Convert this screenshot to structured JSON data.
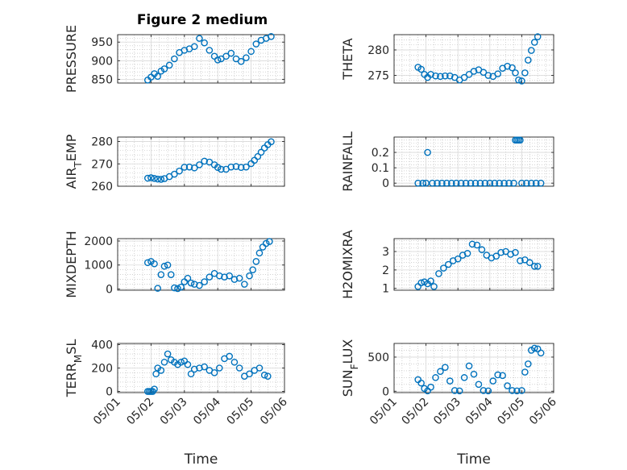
{
  "figure_title": "Figure 2 medium",
  "colors": {
    "marker": "#0072bd",
    "axis": "#262626",
    "grid": "#b8b8b8"
  },
  "chart_data": [
    {
      "type": "scatter",
      "ylabel": "PRESSURE",
      "title": "Figure 2 medium",
      "xlim": [
        0,
        5
      ],
      "ylim": [
        840,
        970
      ],
      "yticks": [
        850,
        900,
        950
      ],
      "xticks": [
        0,
        1,
        2,
        3,
        4,
        5
      ],
      "xticklabels": [
        "05/01",
        "05/02",
        "05/03",
        "05/04",
        "05/05",
        "05/06"
      ],
      "xlabel": "",
      "x": [
        0.9,
        1.0,
        1.1,
        1.2,
        1.3,
        1.4,
        1.55,
        1.7,
        1.85,
        2.0,
        2.15,
        2.3,
        2.45,
        2.6,
        2.75,
        2.9,
        3.0,
        3.1,
        3.25,
        3.4,
        3.55,
        3.7,
        3.85,
        4.0,
        4.15,
        4.3,
        4.45,
        4.6
      ],
      "y": [
        848,
        856,
        865,
        858,
        872,
        878,
        888,
        905,
        922,
        928,
        932,
        938,
        960,
        948,
        928,
        912,
        902,
        905,
        912,
        920,
        905,
        898,
        908,
        925,
        945,
        955,
        960,
        965
      ],
      "grid": true,
      "minor_grid": true
    },
    {
      "type": "scatter",
      "ylabel": "THETA",
      "xlim": [
        0,
        5
      ],
      "ylim": [
        273.5,
        283
      ],
      "yticks": [
        275,
        280
      ],
      "xticks": [
        0,
        1,
        2,
        3,
        4,
        5
      ],
      "xticklabels": [
        "05/01",
        "05/02",
        "05/03",
        "05/04",
        "05/05",
        "05/06"
      ],
      "xlabel": "",
      "x": [
        0.75,
        0.85,
        0.95,
        1.05,
        1.15,
        1.3,
        1.45,
        1.6,
        1.75,
        1.9,
        2.05,
        2.2,
        2.35,
        2.5,
        2.65,
        2.8,
        2.95,
        3.1,
        3.25,
        3.4,
        3.55,
        3.7,
        3.8,
        3.9,
        4.0,
        4.1,
        4.2,
        4.3,
        4.4,
        4.5
      ],
      "y": [
        276.6,
        276.2,
        275.2,
        274.6,
        275.2,
        274.9,
        274.8,
        274.9,
        274.9,
        274.6,
        274.1,
        274.6,
        275.2,
        275.8,
        276.1,
        275.6,
        275.0,
        274.8,
        275.3,
        276.4,
        276.8,
        276.5,
        275.5,
        274.1,
        273.9,
        275.5,
        278.0,
        279.9,
        281.5,
        282.6
      ],
      "grid": true,
      "minor_grid": true
    },
    {
      "type": "scatter",
      "ylabel": "AIR_TEMP",
      "xlim": [
        0,
        5
      ],
      "ylim": [
        260,
        282
      ],
      "yticks": [
        260,
        270,
        280
      ],
      "xticks": [
        0,
        1,
        2,
        3,
        4,
        5
      ],
      "xticklabels": [
        "05/01",
        "05/02",
        "05/03",
        "05/04",
        "05/05",
        "05/06"
      ],
      "xlabel": "",
      "x": [
        0.9,
        1.0,
        1.1,
        1.2,
        1.3,
        1.4,
        1.55,
        1.7,
        1.85,
        2.0,
        2.15,
        2.3,
        2.45,
        2.6,
        2.75,
        2.9,
        3.0,
        3.1,
        3.25,
        3.4,
        3.55,
        3.7,
        3.85,
        4.0,
        4.1,
        4.2,
        4.3,
        4.4,
        4.5,
        4.6
      ],
      "y": [
        263.6,
        263.8,
        263.5,
        263.2,
        263.1,
        263.4,
        264.3,
        265.4,
        266.8,
        268.5,
        268.6,
        268.2,
        269.6,
        271.2,
        270.8,
        269.6,
        268.4,
        267.6,
        267.6,
        268.6,
        268.8,
        268.4,
        268.6,
        270.1,
        271.6,
        273.3,
        275.2,
        277.1,
        278.6,
        279.9
      ],
      "grid": true,
      "minor_grid": true
    },
    {
      "type": "scatter",
      "ylabel": "RAINFALL",
      "xlim": [
        0,
        5
      ],
      "ylim": [
        -0.02,
        0.3
      ],
      "yticks": [
        0,
        0.1,
        0.2
      ],
      "yticklabels": [
        "0",
        "0.1",
        "0.2"
      ],
      "xticks": [
        0,
        1,
        2,
        3,
        4,
        5
      ],
      "xticklabels": [
        "05/01",
        "05/02",
        "05/03",
        "05/04",
        "05/05",
        "05/06"
      ],
      "xlabel": "",
      "x": [
        0.75,
        0.9,
        1.0,
        1.05,
        1.2,
        1.35,
        1.5,
        1.65,
        1.8,
        1.95,
        2.1,
        2.25,
        2.4,
        2.55,
        2.7,
        2.85,
        3.0,
        3.15,
        3.3,
        3.45,
        3.6,
        3.75,
        3.8,
        3.85,
        3.9,
        3.95,
        4.0,
        4.15,
        4.3,
        4.45,
        4.6
      ],
      "y": [
        0,
        0,
        0,
        0.2,
        0,
        0,
        0,
        0,
        0,
        0,
        0,
        0,
        0,
        0,
        0,
        0,
        0,
        0,
        0,
        0,
        0,
        0,
        0.28,
        0.28,
        0.28,
        0.28,
        0,
        0,
        0,
        0,
        0
      ],
      "grid": true,
      "minor_grid": true
    },
    {
      "type": "scatter",
      "ylabel": "MIXDEPTH",
      "xlim": [
        0,
        5
      ],
      "ylim": [
        -50,
        2100
      ],
      "yticks": [
        0,
        1000,
        2000
      ],
      "xticks": [
        0,
        1,
        2,
        3,
        4,
        5
      ],
      "xticklabels": [
        "05/01",
        "05/02",
        "05/03",
        "05/04",
        "05/05",
        "05/06"
      ],
      "xlabel": "",
      "x": [
        0.9,
        1.0,
        1.1,
        1.2,
        1.3,
        1.4,
        1.5,
        1.6,
        1.7,
        1.8,
        1.9,
        2.0,
        2.1,
        2.2,
        2.3,
        2.45,
        2.6,
        2.75,
        2.9,
        3.05,
        3.2,
        3.35,
        3.5,
        3.65,
        3.8,
        3.95,
        4.05,
        4.15,
        4.25,
        4.35,
        4.45,
        4.55
      ],
      "y": [
        1100,
        1150,
        1050,
        30,
        600,
        950,
        1000,
        600,
        50,
        20,
        80,
        300,
        450,
        250,
        200,
        150,
        300,
        500,
        650,
        550,
        500,
        550,
        400,
        450,
        200,
        550,
        800,
        1150,
        1500,
        1750,
        1900,
        1980
      ],
      "grid": true,
      "minor_grid": true
    },
    {
      "type": "scatter",
      "ylabel": "H2OMIXRA",
      "xlim": [
        0,
        5
      ],
      "ylim": [
        0.9,
        3.7
      ],
      "yticks": [
        1,
        2,
        3
      ],
      "xticks": [
        0,
        1,
        2,
        3,
        4,
        5
      ],
      "xticklabels": [
        "05/01",
        "05/02",
        "05/03",
        "05/04",
        "05/05",
        "05/06"
      ],
      "xlabel": "",
      "x": [
        0.75,
        0.85,
        0.95,
        1.05,
        1.15,
        1.25,
        1.4,
        1.55,
        1.7,
        1.85,
        2.0,
        2.15,
        2.3,
        2.45,
        2.6,
        2.75,
        2.9,
        3.05,
        3.2,
        3.35,
        3.5,
        3.65,
        3.8,
        3.95,
        4.1,
        4.25,
        4.4,
        4.5
      ],
      "y": [
        1.1,
        1.3,
        1.35,
        1.25,
        1.4,
        1.1,
        1.8,
        2.1,
        2.3,
        2.5,
        2.6,
        2.8,
        2.9,
        3.4,
        3.35,
        3.1,
        2.8,
        2.65,
        2.75,
        2.95,
        3.0,
        2.85,
        2.95,
        2.5,
        2.55,
        2.4,
        2.2,
        2.2
      ],
      "grid": true,
      "minor_grid": true
    },
    {
      "type": "scatter",
      "ylabel": "TERR_MSL",
      "xlim": [
        0,
        5
      ],
      "ylim": [
        -10,
        410
      ],
      "yticks": [
        0,
        200,
        400
      ],
      "xticks": [
        0,
        1,
        2,
        3,
        4,
        5
      ],
      "xticklabels": [
        "05/01",
        "05/02",
        "05/03",
        "05/04",
        "05/05",
        "05/06"
      ],
      "xlabel": "Time",
      "x": [
        0.9,
        0.95,
        1.0,
        1.05,
        1.1,
        1.15,
        1.2,
        1.3,
        1.4,
        1.5,
        1.6,
        1.7,
        1.8,
        1.9,
        2.0,
        2.1,
        2.2,
        2.3,
        2.45,
        2.6,
        2.75,
        2.9,
        3.05,
        3.2,
        3.35,
        3.5,
        3.65,
        3.8,
        3.95,
        4.1,
        4.25,
        4.4,
        4.5
      ],
      "y": [
        0,
        0,
        0,
        0,
        20,
        150,
        200,
        180,
        250,
        320,
        270,
        250,
        230,
        250,
        260,
        230,
        150,
        190,
        200,
        210,
        180,
        160,
        200,
        280,
        300,
        250,
        200,
        130,
        150,
        180,
        200,
        140,
        130
      ],
      "grid": true,
      "minor_grid": true
    },
    {
      "type": "scatter",
      "ylabel": "SUN_FLUX",
      "xlim": [
        0,
        5
      ],
      "ylim": [
        -20,
        700
      ],
      "yticks": [
        0,
        500
      ],
      "xticks": [
        0,
        1,
        2,
        3,
        4,
        5
      ],
      "xticklabels": [
        "05/01",
        "05/02",
        "05/03",
        "05/04",
        "05/05",
        "05/06"
      ],
      "xlabel": "Time",
      "x": [
        0.75,
        0.85,
        0.95,
        1.05,
        1.15,
        1.3,
        1.45,
        1.6,
        1.75,
        1.9,
        2.05,
        2.2,
        2.35,
        2.5,
        2.65,
        2.8,
        2.95,
        3.1,
        3.25,
        3.4,
        3.55,
        3.7,
        3.85,
        4.0,
        4.1,
        4.2,
        4.3,
        4.4,
        4.5,
        4.6
      ],
      "y": [
        170,
        120,
        40,
        5,
        60,
        200,
        290,
        350,
        150,
        10,
        5,
        200,
        370,
        250,
        100,
        10,
        5,
        150,
        240,
        230,
        80,
        10,
        5,
        10,
        280,
        400,
        600,
        630,
        620,
        560
      ],
      "grid": true,
      "minor_grid": true
    }
  ]
}
